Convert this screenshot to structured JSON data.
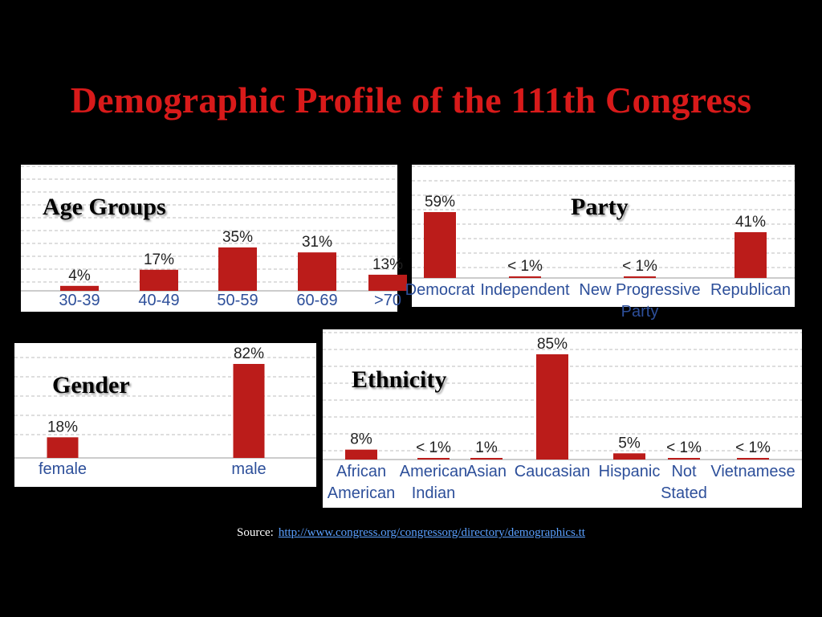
{
  "title": "Demographic Profile of the 111th Congress",
  "source": {
    "label": "Source:",
    "link": "http://www.congress.org/congressorg/directory/demographics.tt"
  },
  "colors": {
    "bar": "#bb1c1a",
    "title": "#d81a1a",
    "category": "#2d4f9a"
  },
  "chart_data": [
    {
      "id": "age",
      "type": "bar",
      "title": "Age Groups",
      "categories": [
        "30-39",
        "40-49",
        "50-59",
        "60-69",
        ">70"
      ],
      "values": [
        4,
        17,
        35,
        31,
        13
      ],
      "labels": [
        "4%",
        "17%",
        "35%",
        "31%",
        "13%"
      ],
      "unit": "%",
      "grid": true
    },
    {
      "id": "party",
      "type": "bar",
      "title": "Party",
      "categories": [
        "Democrat",
        "Independent",
        "New Progressive Party",
        "Republican"
      ],
      "values": [
        59,
        0.5,
        0.5,
        41
      ],
      "labels": [
        "59%",
        "< 1%",
        "< 1%",
        "41%"
      ],
      "unit": "%",
      "grid": true
    },
    {
      "id": "gender",
      "type": "bar",
      "title": "Gender",
      "categories": [
        "female",
        "male"
      ],
      "values": [
        18,
        82
      ],
      "labels": [
        "18%",
        "82%"
      ],
      "unit": "%",
      "grid": true
    },
    {
      "id": "ethnicity",
      "type": "bar",
      "title": "Ethnicity",
      "categories": [
        "African American",
        "American Indian",
        "Asian",
        "Caucasian",
        "Hispanic",
        "Not Stated",
        "Vietnamese"
      ],
      "values": [
        8,
        0.5,
        1,
        85,
        5,
        0.5,
        0.5
      ],
      "labels": [
        "8%",
        "< 1%",
        "1%",
        "85%",
        "5%",
        "< 1%",
        "< 1%"
      ],
      "unit": "%",
      "grid": true
    }
  ]
}
